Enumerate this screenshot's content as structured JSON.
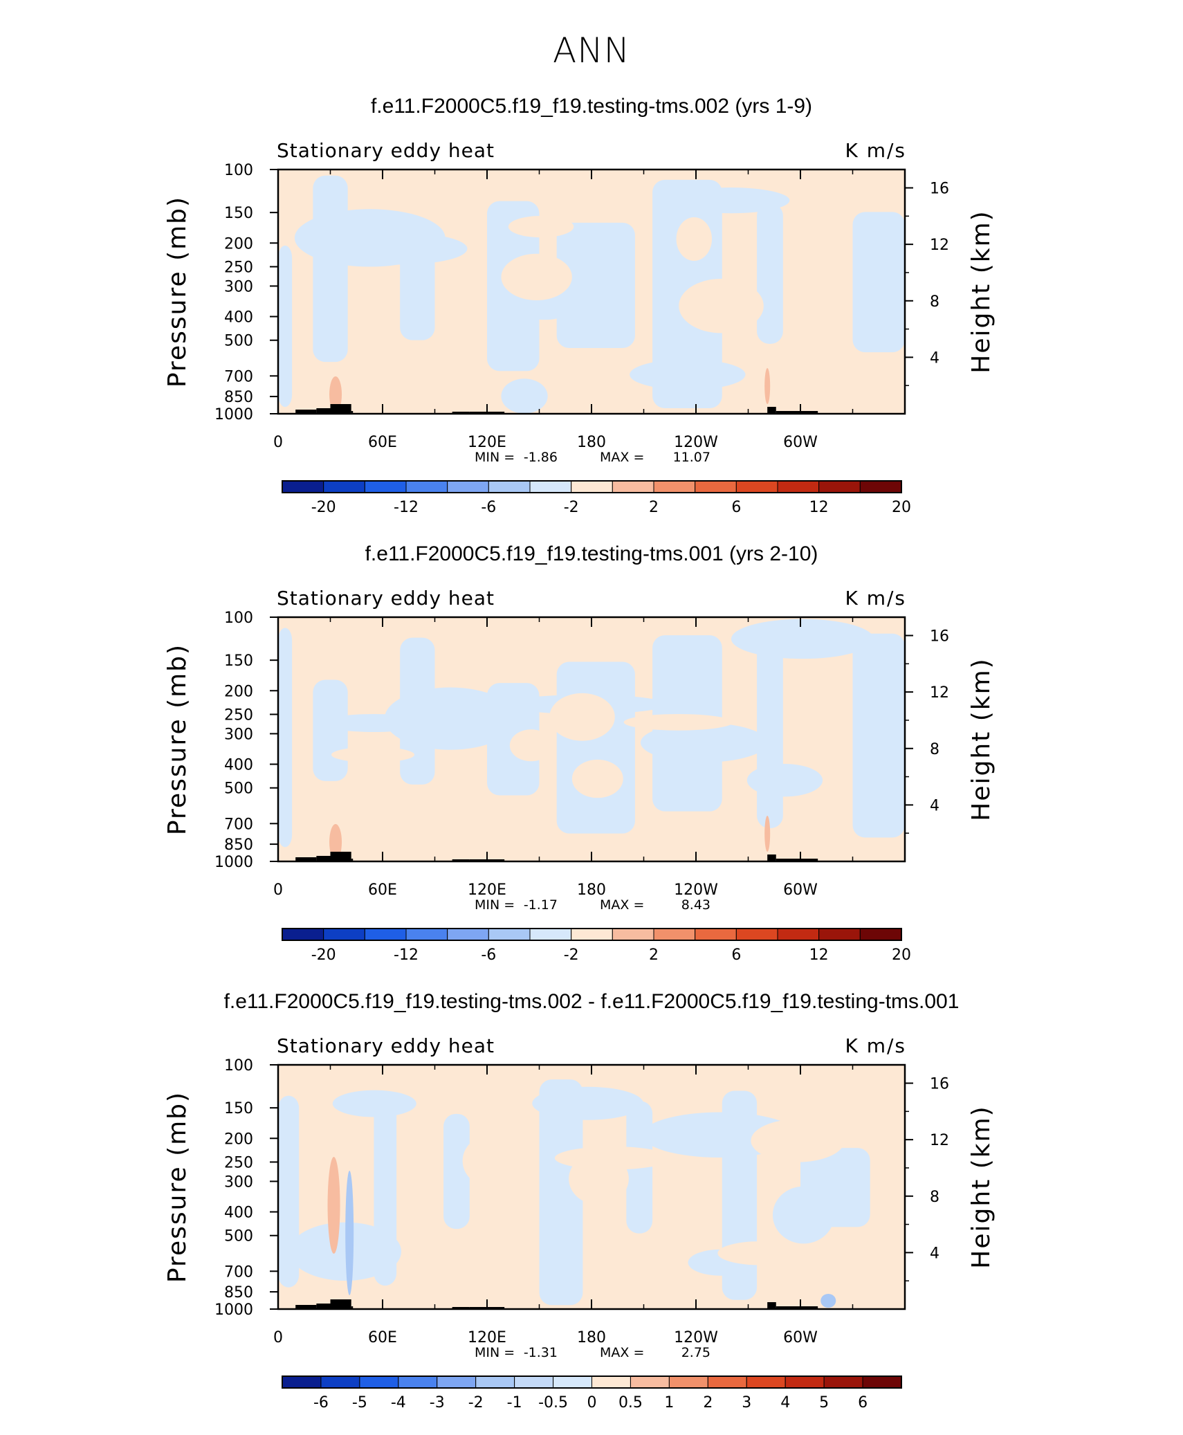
{
  "page": {
    "title": "ANN"
  },
  "colors": {
    "neg_soft": "#d6e8fb",
    "pos_soft": "#fde8d4",
    "neg_mid": "#a9c8f5",
    "pos_mid": "#f7bca0",
    "pos_strong": "#ee9a7a",
    "topography": "#000000"
  },
  "shared_axes": {
    "xlabel": "",
    "ylabel_left": "Pressure (mb)",
    "ylabel_right": "Height (km)",
    "xticks": [
      "0",
      "60E",
      "120E",
      "180",
      "120W",
      "60W"
    ],
    "xtick_values": [
      0,
      60,
      120,
      180,
      240,
      300
    ],
    "pressure_ticks": [
      "100",
      "150",
      "200",
      "250",
      "300",
      "400",
      "500",
      "700",
      "850",
      "1000"
    ],
    "pressure_values": [
      100,
      150,
      200,
      250,
      300,
      400,
      500,
      700,
      850,
      1000
    ],
    "height_ticks": [
      "4",
      "8",
      "12",
      "16"
    ],
    "height_values": [
      4,
      8,
      12,
      16
    ],
    "xlim": [
      0,
      360
    ],
    "ylim_pressure": [
      1000,
      100
    ],
    "y_scale": "log-pressure"
  },
  "chart_data": [
    {
      "type": "heatmap",
      "title": "f.e11.F2000C5.f19_f19.testing-tms.002 (yrs 1-9)",
      "variable": "Stationary eddy heat",
      "units": "K m/s",
      "stats": {
        "min_label": "MIN =",
        "min": "-1.86",
        "max_label": "MAX =",
        "max": "11.07"
      },
      "colorbar": {
        "labels": [
          "-20",
          "-12",
          "-6",
          "-2",
          "2",
          "6",
          "12",
          "20"
        ],
        "colors": [
          "#0a1f8f",
          "#0d3fc4",
          "#1f5fe6",
          "#4a82ee",
          "#7ea6f2",
          "#a9c8f5",
          "#d6e8fb",
          "#fde8d4",
          "#f7bca0",
          "#f1916b",
          "#e9693f",
          "#dc4721",
          "#c22a12",
          "#9a150a",
          "#6d0606"
        ]
      }
    },
    {
      "type": "heatmap",
      "title": "f.e11.F2000C5.f19_f19.testing-tms.001 (yrs 2-10)",
      "variable": "Stationary eddy heat",
      "units": "K m/s",
      "stats": {
        "min_label": "MIN =",
        "min": "-1.17",
        "max_label": "MAX =",
        "max": "8.43"
      },
      "colorbar": {
        "labels": [
          "-20",
          "-12",
          "-6",
          "-2",
          "2",
          "6",
          "12",
          "20"
        ],
        "colors": [
          "#0a1f8f",
          "#0d3fc4",
          "#1f5fe6",
          "#4a82ee",
          "#7ea6f2",
          "#a9c8f5",
          "#d6e8fb",
          "#fde8d4",
          "#f7bca0",
          "#f1916b",
          "#e9693f",
          "#dc4721",
          "#c22a12",
          "#9a150a",
          "#6d0606"
        ]
      }
    },
    {
      "type": "heatmap",
      "title": "f.e11.F2000C5.f19_f19.testing-tms.002 - f.e11.F2000C5.f19_f19.testing-tms.001",
      "variable": "Stationary eddy heat",
      "units": "K m/s",
      "stats": {
        "min_label": "MIN =",
        "min": "-1.31",
        "max_label": "MAX =",
        "max": "2.75"
      },
      "colorbar": {
        "labels": [
          "-6",
          "-5",
          "-4",
          "-3",
          "-2",
          "-1",
          "-0.5",
          "0",
          "0.5",
          "1",
          "2",
          "3",
          "4",
          "5",
          "6"
        ],
        "colors": [
          "#0a1f8f",
          "#0d3fc4",
          "#1f5fe6",
          "#4a82ee",
          "#7ea6f2",
          "#a9c8f5",
          "#c4daf8",
          "#d6e8fb",
          "#fde8d4",
          "#f7bca0",
          "#f1916b",
          "#e9693f",
          "#dc4721",
          "#c22a12",
          "#9a150a",
          "#6d0606"
        ]
      }
    }
  ]
}
